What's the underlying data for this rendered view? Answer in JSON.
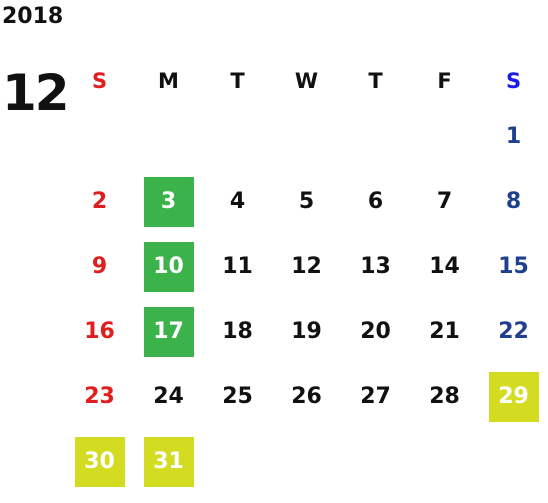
{
  "calendar": {
    "year": "2018",
    "month": "12",
    "weekdays": [
      "S",
      "M",
      "T",
      "W",
      "T",
      "F",
      "S"
    ],
    "weeks": [
      [
        "",
        "",
        "",
        "",
        "",
        "",
        "1"
      ],
      [
        "2",
        "3",
        "4",
        "5",
        "6",
        "7",
        "8"
      ],
      [
        "9",
        "10",
        "11",
        "12",
        "13",
        "14",
        "15"
      ],
      [
        "16",
        "17",
        "18",
        "19",
        "20",
        "21",
        "22"
      ],
      [
        "23",
        "24",
        "25",
        "26",
        "27",
        "28",
        "29"
      ],
      [
        "30",
        "31",
        "",
        "",
        "",
        "",
        ""
      ]
    ],
    "highlight_colors": {
      "green": "#3bb24a",
      "yellow": "#d4dc22",
      "sunday": "#e11d1d",
      "saturday": "#1f3f8f"
    },
    "highlighted_green": [
      "3",
      "10",
      "17"
    ],
    "highlighted_yellow": [
      "29",
      "30",
      "31"
    ]
  }
}
